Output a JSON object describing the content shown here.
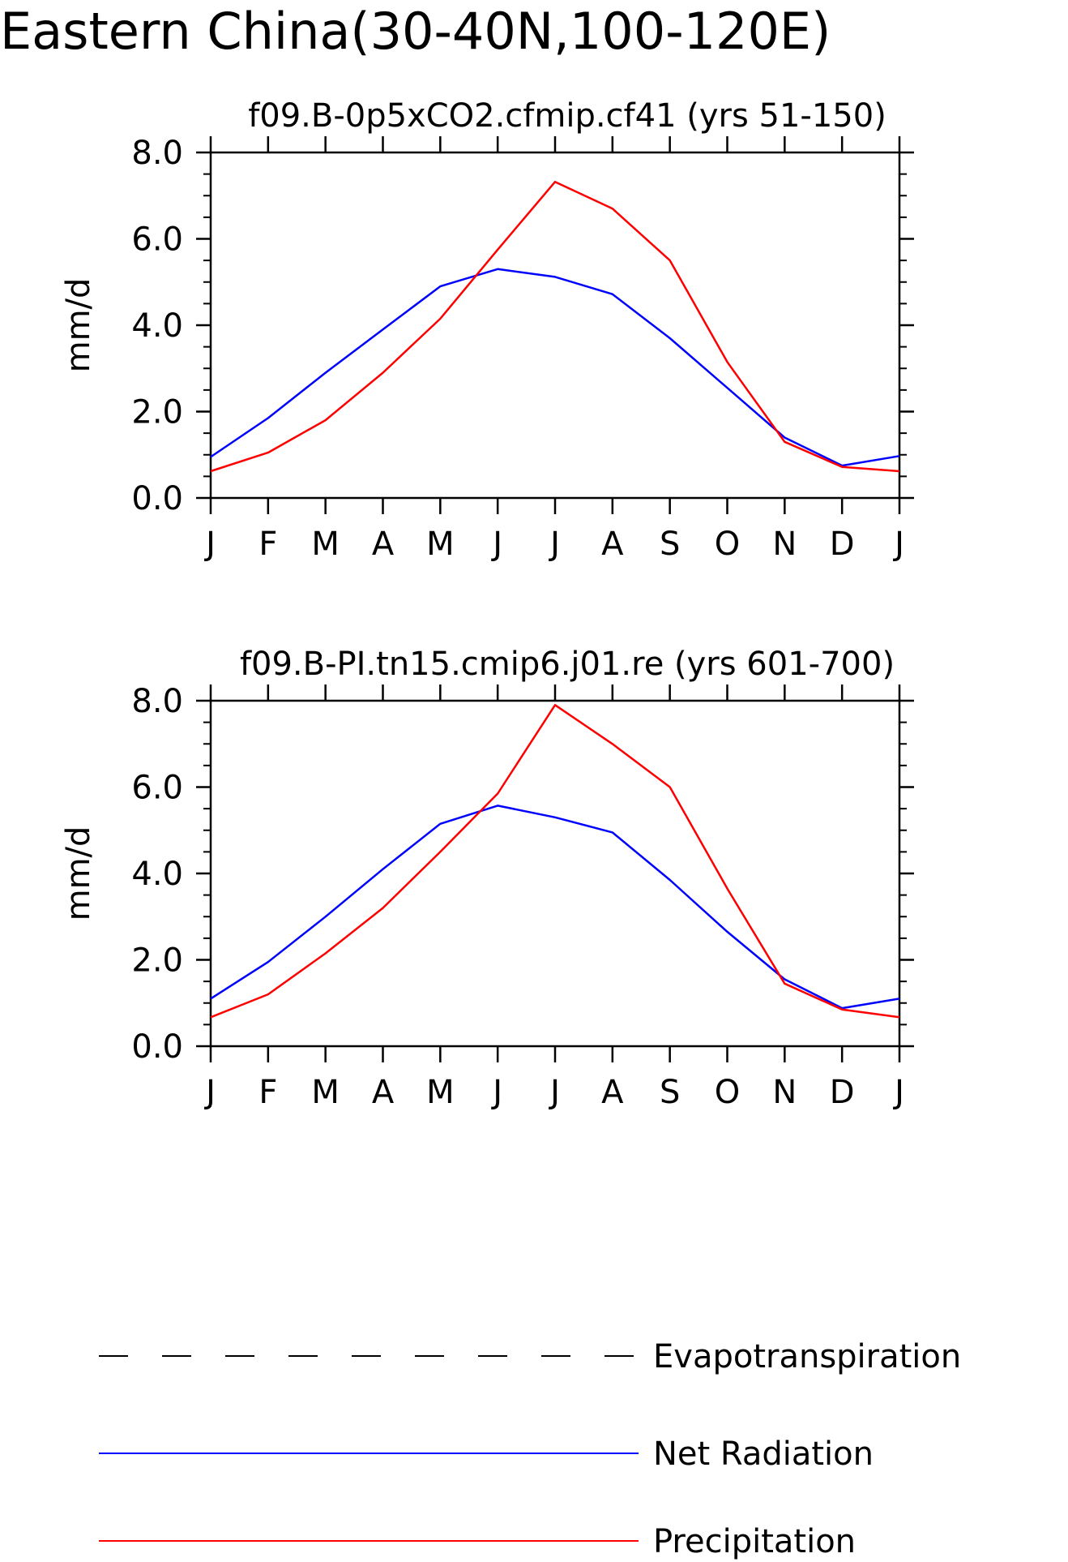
{
  "figure": {
    "title": "Eastern China(30-40N,100-120E)"
  },
  "legend": {
    "items": [
      {
        "label": "Evapotranspiration",
        "color": "#000000",
        "style": "dashed"
      },
      {
        "label": "Net Radiation",
        "color": "#0000ff",
        "style": "solid"
      },
      {
        "label": "Precipitation",
        "color": "#ff0000",
        "style": "solid"
      }
    ]
  },
  "chart_data": [
    {
      "type": "line",
      "title": "f09.B-0p5xCO2.cfmip.cf41 (yrs 51-150)",
      "ylabel": "mm/d",
      "xlabel": "",
      "ylim": [
        0,
        8
      ],
      "yticks": [
        "0.0",
        "2.0",
        "4.0",
        "6.0",
        "8.0"
      ],
      "categories": [
        "J",
        "F",
        "M",
        "A",
        "M",
        "J",
        "J",
        "A",
        "S",
        "O",
        "N",
        "D",
        "J"
      ],
      "series": [
        {
          "name": "Net Radiation",
          "color": "#0000ff",
          "values": [
            0.95,
            1.85,
            2.9,
            3.9,
            4.9,
            5.3,
            5.12,
            4.72,
            3.7,
            2.55,
            1.4,
            0.75,
            0.97
          ]
        },
        {
          "name": "Precipitation",
          "color": "#ff0000",
          "values": [
            0.62,
            1.05,
            1.8,
            2.9,
            4.15,
            5.75,
            7.32,
            6.7,
            5.5,
            3.15,
            1.3,
            0.72,
            0.62
          ]
        }
      ]
    },
    {
      "type": "line",
      "title": "f09.B-PI.tn15.cmip6.j01.re (yrs 601-700)",
      "ylabel": "mm/d",
      "xlabel": "",
      "ylim": [
        0,
        8
      ],
      "yticks": [
        "0.0",
        "2.0",
        "4.0",
        "6.0",
        "8.0"
      ],
      "categories": [
        "J",
        "F",
        "M",
        "A",
        "M",
        "J",
        "J",
        "A",
        "S",
        "O",
        "N",
        "D",
        "J"
      ],
      "series": [
        {
          "name": "Net Radiation",
          "color": "#0000ff",
          "values": [
            1.1,
            1.95,
            3.0,
            4.1,
            5.15,
            5.57,
            5.3,
            4.95,
            3.85,
            2.65,
            1.55,
            0.88,
            1.1
          ]
        },
        {
          "name": "Precipitation",
          "color": "#ff0000",
          "values": [
            0.67,
            1.2,
            2.15,
            3.2,
            4.5,
            5.85,
            7.9,
            7.0,
            6.0,
            3.65,
            1.45,
            0.85,
            0.67
          ]
        }
      ]
    }
  ]
}
